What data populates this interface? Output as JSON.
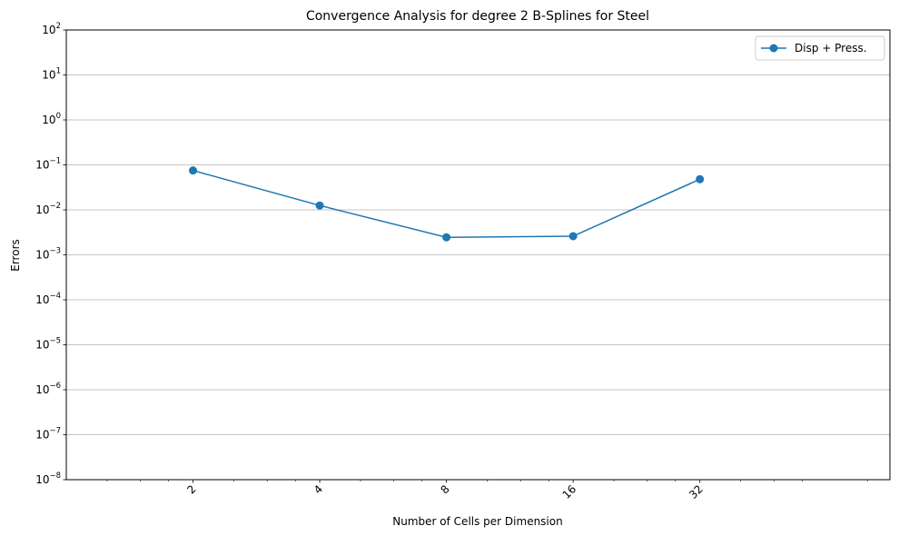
{
  "chart_data": {
    "type": "line",
    "title": "Convergence Analysis for degree 2 B-Splines for Steel",
    "xlabel": "Number of Cells per Dimension",
    "ylabel": "Errors",
    "xscale": "log2",
    "yscale": "log10",
    "xlim": [
      1.0,
      90.5
    ],
    "ylim": [
      1e-08,
      100
    ],
    "x_ticks": [
      2,
      4,
      8,
      16,
      32
    ],
    "x_tick_labels": [
      "2",
      "4",
      "8",
      "16",
      "32"
    ],
    "y_ticks": [
      {
        "base": "10",
        "exp": "−8",
        "value": 1e-08
      },
      {
        "base": "10",
        "exp": "−7",
        "value": 1e-07
      },
      {
        "base": "10",
        "exp": "−6",
        "value": 1e-06
      },
      {
        "base": "10",
        "exp": "−5",
        "value": 1e-05
      },
      {
        "base": "10",
        "exp": "−4",
        "value": 0.0001
      },
      {
        "base": "10",
        "exp": "−3",
        "value": 0.001
      },
      {
        "base": "10",
        "exp": "−2",
        "value": 0.01
      },
      {
        "base": "10",
        "exp": "−1",
        "value": 0.1
      },
      {
        "base": "10",
        "exp": "0",
        "value": 1
      },
      {
        "base": "10",
        "exp": "1",
        "value": 10
      },
      {
        "base": "10",
        "exp": "2",
        "value": 100
      }
    ],
    "grid": "horizontal",
    "legend_position": "top-right",
    "series": [
      {
        "name": "Disp + Press.",
        "color": "#1f77b4",
        "marker": "circle",
        "x": [
          2,
          4,
          8,
          16,
          32
        ],
        "y": [
          0.075,
          0.0125,
          0.00245,
          0.0026,
          0.048
        ]
      }
    ]
  }
}
